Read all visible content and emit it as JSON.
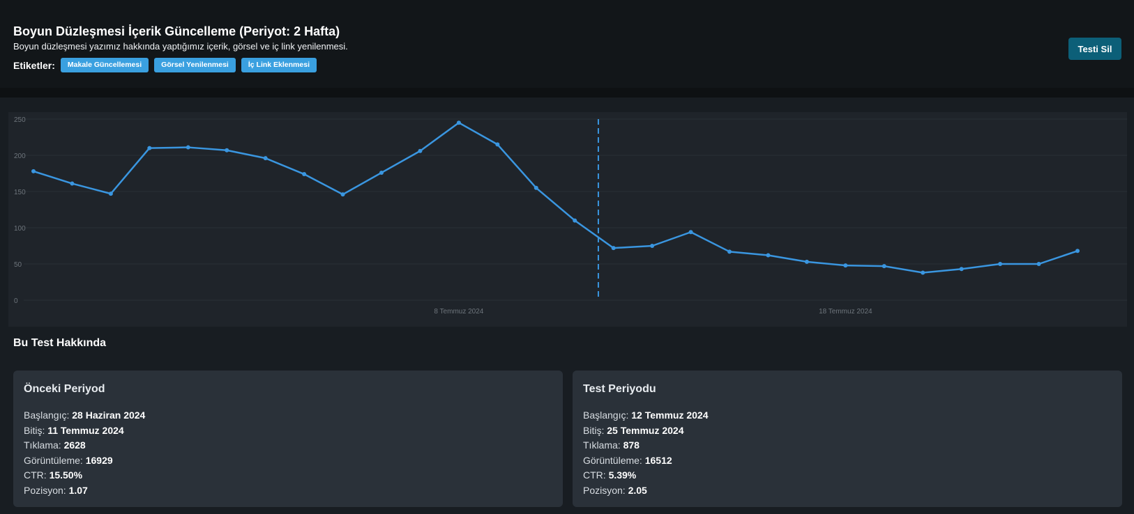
{
  "header": {
    "title": "Boyun Düzleşmesi İçerik Güncelleme (Periyot: 2 Hafta)",
    "subtitle": "Boyun düzleşmesi yazımız hakkında yaptığımız içerik, görsel ve iç link yenilenmesi.",
    "tags_label": "Etiketler:",
    "tags": [
      "Makale Güncellemesi",
      "Görsel Yenilenmesi",
      "İç Link Eklenmesi"
    ],
    "delete_label": "Testi Sil"
  },
  "chart_data": {
    "type": "line",
    "x": [
      "27 Haziran 2024",
      "28 Haziran 2024",
      "29 Haziran 2024",
      "30 Haziran 2024",
      "1 Temmuz 2024",
      "2 Temmuz 2024",
      "3 Temmuz 2024",
      "4 Temmuz 2024",
      "5 Temmuz 2024",
      "6 Temmuz 2024",
      "7 Temmuz 2024",
      "8 Temmuz 2024",
      "9 Temmuz 2024",
      "10 Temmuz 2024",
      "11 Temmuz 2024",
      "12 Temmuz 2024",
      "13 Temmuz 2024",
      "14 Temmuz 2024",
      "15 Temmuz 2024",
      "16 Temmuz 2024",
      "17 Temmuz 2024",
      "18 Temmuz 2024",
      "19 Temmuz 2024",
      "20 Temmuz 2024",
      "21 Temmuz 2024",
      "22 Temmuz 2024",
      "23 Temmuz 2024",
      "24 Temmuz 2024"
    ],
    "values": [
      178,
      161,
      147,
      210,
      211,
      207,
      196,
      174,
      146,
      176,
      206,
      245,
      215,
      155,
      110,
      72,
      75,
      94,
      67,
      62,
      53,
      48,
      47,
      38,
      43,
      50,
      50,
      68
    ],
    "tick_labels": [
      "8 Temmuz 2024",
      "18 Temmuz 2024"
    ],
    "tick_positions": [
      "8 Temmuz 2024",
      "18 Temmuz 2024"
    ],
    "y_ticks": [
      0,
      50,
      100,
      150,
      200,
      250
    ],
    "ylim": [
      0,
      250
    ],
    "marker": "12 Temmuz 2024",
    "grid": true,
    "line_color": "#3a96e0"
  },
  "about": {
    "title": "Bu Test Hakkında",
    "previous": {
      "title": "Önceki Periyod",
      "rows": [
        {
          "label": "Başlangıç:",
          "value": "28 Haziran 2024"
        },
        {
          "label": "Bitiş:",
          "value": "11 Temmuz 2024"
        },
        {
          "label": "Tıklama:",
          "value": "2628"
        },
        {
          "label": "Görüntüleme:",
          "value": "16929"
        },
        {
          "label": "CTR:",
          "value": "15.50%"
        },
        {
          "label": "Pozisyon:",
          "value": "1.07"
        }
      ]
    },
    "test": {
      "title": "Test Periyodu",
      "rows": [
        {
          "label": "Başlangıç:",
          "value": "12 Temmuz 2024"
        },
        {
          "label": "Bitiş:",
          "value": "25 Temmuz 2024"
        },
        {
          "label": "Tıklama:",
          "value": "878"
        },
        {
          "label": "Görüntüleme:",
          "value": "16512"
        },
        {
          "label": "CTR:",
          "value": "5.39%"
        },
        {
          "label": "Pozisyon:",
          "value": "2.05"
        }
      ]
    }
  }
}
